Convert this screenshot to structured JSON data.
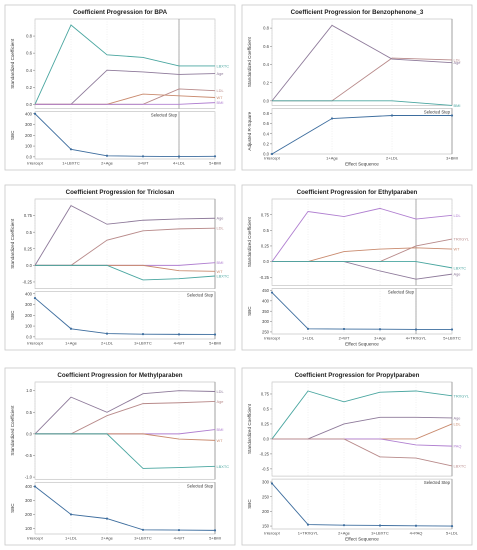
{
  "chart_data": [
    {
      "type": "line",
      "title": "Coefficient Progression for BPA",
      "top_ylabel": "Standardized Coefficient",
      "bottom_ylabel": "SBC",
      "xlabel": "",
      "x_categories": [
        "Intercept",
        "1+LBXTC",
        "2+Age",
        "3+WT",
        "4+LDL",
        "5+BMI"
      ],
      "top_ylim": [
        -0.05,
        1.0
      ],
      "top_yticks": [
        0.0,
        0.2,
        0.4,
        0.6,
        0.8
      ],
      "top_series": [
        {
          "name": "LBXTC",
          "color": "#4aa6a0",
          "values": [
            0,
            0.93,
            0.58,
            0.55,
            0.45,
            0.45
          ]
        },
        {
          "name": "Age",
          "color": "#8e7a9a",
          "values": [
            0,
            0,
            0.4,
            0.38,
            0.35,
            0.36
          ]
        },
        {
          "name": "LDL",
          "color": "#b88a8a",
          "values": [
            0,
            0,
            0,
            0,
            0.18,
            0.16
          ]
        },
        {
          "name": "WT",
          "color": "#c98a6e",
          "values": [
            0,
            0,
            0,
            0.12,
            0.1,
            0.08
          ]
        },
        {
          "name": "BMI",
          "color": "#b07fd0",
          "values": [
            0,
            0,
            0,
            0,
            0,
            0.02
          ]
        }
      ],
      "bottom_ylim": [
        -20,
        420
      ],
      "bottom_yticks": [
        0,
        100,
        200,
        300,
        400
      ],
      "bottom_values": [
        400,
        70,
        10,
        5,
        3,
        5
      ],
      "selected_step_index": 4,
      "selected_step_label": "Selected Step"
    },
    {
      "type": "line",
      "title": "Coefficient Progression for Benzophenone_3",
      "top_ylabel": "Standardized Coefficient",
      "bottom_ylabel": "Adjusted R-Square",
      "xlabel": "Effect Sequence",
      "x_categories": [
        "Intercept",
        "1+Age",
        "2+LDL",
        "3+BMI"
      ],
      "top_ylim": [
        -0.05,
        0.9
      ],
      "top_yticks": [
        0.0,
        0.2,
        0.4,
        0.6,
        0.8
      ],
      "top_series": [
        {
          "name": "LDL",
          "color": "#b88a8a",
          "values": [
            0,
            0,
            0.47,
            0.45
          ]
        },
        {
          "name": "Age",
          "color": "#8e7a9a",
          "values": [
            0,
            0.83,
            0.46,
            0.42
          ]
        },
        {
          "name": "BMI",
          "color": "#4aa6a0",
          "values": [
            0,
            0,
            0,
            -0.05
          ]
        }
      ],
      "bottom_ylim": [
        0.0,
        0.9
      ],
      "bottom_yticks": [
        0.0,
        0.2,
        0.4,
        0.6,
        0.8
      ],
      "bottom_values": [
        0.0,
        0.7,
        0.76,
        0.76
      ],
      "selected_step_index": 3,
      "selected_step_label": "Selected Step"
    },
    {
      "type": "line",
      "title": "Coefficient Progression for Triclosan",
      "top_ylabel": "Standardized Coefficient",
      "bottom_ylabel": "SBC",
      "xlabel": "",
      "x_categories": [
        "Intercept",
        "1+Age",
        "2+LDL",
        "3+LBXTC",
        "4+WT",
        "5+BMI"
      ],
      "top_ylim": [
        -0.35,
        1.0
      ],
      "top_yticks": [
        -0.25,
        0.0,
        0.25,
        0.5,
        0.75
      ],
      "top_series": [
        {
          "name": "Age",
          "color": "#8e7a9a",
          "values": [
            0,
            0.9,
            0.62,
            0.68,
            0.7,
            0.71
          ]
        },
        {
          "name": "LDL",
          "color": "#b88a8a",
          "values": [
            0,
            0,
            0.38,
            0.52,
            0.55,
            0.56
          ]
        },
        {
          "name": "BMI",
          "color": "#b07fd0",
          "values": [
            0,
            0,
            0,
            0,
            0,
            0.04
          ]
        },
        {
          "name": "WT",
          "color": "#c98a6e",
          "values": [
            0,
            0,
            0,
            0,
            -0.08,
            -0.09
          ]
        },
        {
          "name": "LBXTC",
          "color": "#4aa6a0",
          "values": [
            0,
            0,
            0,
            -0.22,
            -0.2,
            -0.16
          ]
        }
      ],
      "bottom_ylim": [
        -20,
        420
      ],
      "bottom_yticks": [
        0,
        100,
        200,
        300,
        400
      ],
      "bottom_values": [
        360,
        75,
        30,
        25,
        23,
        22
      ],
      "selected_step_index": 5,
      "selected_step_label": "Selected Step"
    },
    {
      "type": "line",
      "title": "Coefficient Progression for Ethylparaben",
      "top_ylabel": "Standardized Coefficient",
      "bottom_ylabel": "SBC",
      "xlabel": "Effect Sequence",
      "x_categories": [
        "Intercept",
        "1+LDL",
        "2+WT",
        "3+Age",
        "4+TRXGYL",
        "5+LBXTC"
      ],
      "top_ylim": [
        -0.38,
        1.0
      ],
      "top_yticks": [
        -0.25,
        0.0,
        0.25,
        0.5,
        0.75
      ],
      "top_series": [
        {
          "name": "LDL",
          "color": "#b07fd0",
          "values": [
            0,
            0.8,
            0.72,
            0.85,
            0.68,
            0.74
          ]
        },
        {
          "name": "TRXGYL",
          "color": "#b88a8a",
          "values": [
            0,
            0,
            0,
            0,
            0.25,
            0.36
          ]
        },
        {
          "name": "WT",
          "color": "#c98a6e",
          "values": [
            0,
            0,
            0.16,
            0.2,
            0.22,
            0.2
          ]
        },
        {
          "name": "Age",
          "color": "#8e7a9a",
          "values": [
            0,
            0,
            0,
            -0.15,
            -0.28,
            -0.2
          ]
        },
        {
          "name": "LBXTC",
          "color": "#4aa6a0",
          "values": [
            0,
            0,
            0,
            0,
            0,
            -0.1
          ]
        }
      ],
      "bottom_ylim": [
        240,
        460
      ],
      "bottom_yticks": [
        250,
        300,
        350,
        400,
        450
      ],
      "bottom_values": [
        440,
        265,
        264,
        263,
        262,
        262
      ],
      "selected_step_index": 4,
      "selected_step_label": "Selected Step"
    },
    {
      "type": "line",
      "title": "Coefficient Progression for Methylparaben",
      "top_ylabel": "Standardized Coefficient",
      "bottom_ylabel": "SBC",
      "xlabel": "",
      "x_categories": [
        "Intercept",
        "1+LDL",
        "2+Age",
        "3+LBXTC",
        "4+WT",
        "5+BMI"
      ],
      "top_ylim": [
        -1.05,
        1.2
      ],
      "top_yticks": [
        -1.0,
        -0.5,
        0.0,
        0.5,
        1.0
      ],
      "top_series": [
        {
          "name": "LDL",
          "color": "#8e7a9a",
          "values": [
            0,
            0.85,
            0.5,
            0.93,
            1.0,
            0.98
          ]
        },
        {
          "name": "Age",
          "color": "#b88a8a",
          "values": [
            0,
            0,
            0.42,
            0.7,
            0.72,
            0.75
          ]
        },
        {
          "name": "BMI",
          "color": "#b07fd0",
          "values": [
            0,
            0,
            0,
            0,
            0,
            0.1
          ]
        },
        {
          "name": "WT",
          "color": "#c98a6e",
          "values": [
            0,
            0,
            0,
            0,
            -0.12,
            -0.15
          ]
        },
        {
          "name": "LBXTC",
          "color": "#4aa6a0",
          "values": [
            0,
            0,
            0,
            -0.8,
            -0.78,
            -0.75
          ]
        }
      ],
      "bottom_ylim": [
        60,
        430
      ],
      "bottom_yticks": [
        100,
        200,
        300,
        400
      ],
      "bottom_values": [
        400,
        200,
        170,
        90,
        88,
        86
      ],
      "selected_step_index": 5,
      "selected_step_label": "Selected Step"
    },
    {
      "type": "line",
      "title": "Coefficient Progression for Propylparaben",
      "top_ylabel": "Standardized Coefficient",
      "bottom_ylabel": "SBC",
      "xlabel": "Effect Sequence",
      "x_categories": [
        "Intercept",
        "1+TRXGYL",
        "2+Age",
        "3+LBXTC",
        "4+PAQ",
        "5+LDL"
      ],
      "top_ylim": [
        -0.62,
        0.95
      ],
      "top_yticks": [
        -0.5,
        -0.25,
        0.0,
        0.25,
        0.5,
        0.75
      ],
      "top_series": [
        {
          "name": "TRXGYL",
          "color": "#4aa6a0",
          "values": [
            0,
            0.8,
            0.62,
            0.78,
            0.8,
            0.72
          ]
        },
        {
          "name": "Age",
          "color": "#8e7a9a",
          "values": [
            0,
            0,
            0.25,
            0.36,
            0.36,
            0.35
          ]
        },
        {
          "name": "LDL",
          "color": "#c98a6e",
          "values": [
            0,
            0,
            0,
            0,
            0,
            0.25
          ]
        },
        {
          "name": "PAQ",
          "color": "#b07fd0",
          "values": [
            0,
            0,
            0,
            0,
            -0.1,
            -0.12
          ]
        },
        {
          "name": "LBXTC",
          "color": "#b88a8a",
          "values": [
            0,
            0,
            0,
            -0.3,
            -0.32,
            -0.45
          ]
        }
      ],
      "bottom_ylim": [
        140,
        310
      ],
      "bottom_yticks": [
        150,
        200,
        250,
        300
      ],
      "bottom_values": [
        295,
        155,
        153,
        152,
        151,
        150
      ],
      "selected_step_index": 5,
      "selected_step_label": "Selected Step"
    }
  ]
}
